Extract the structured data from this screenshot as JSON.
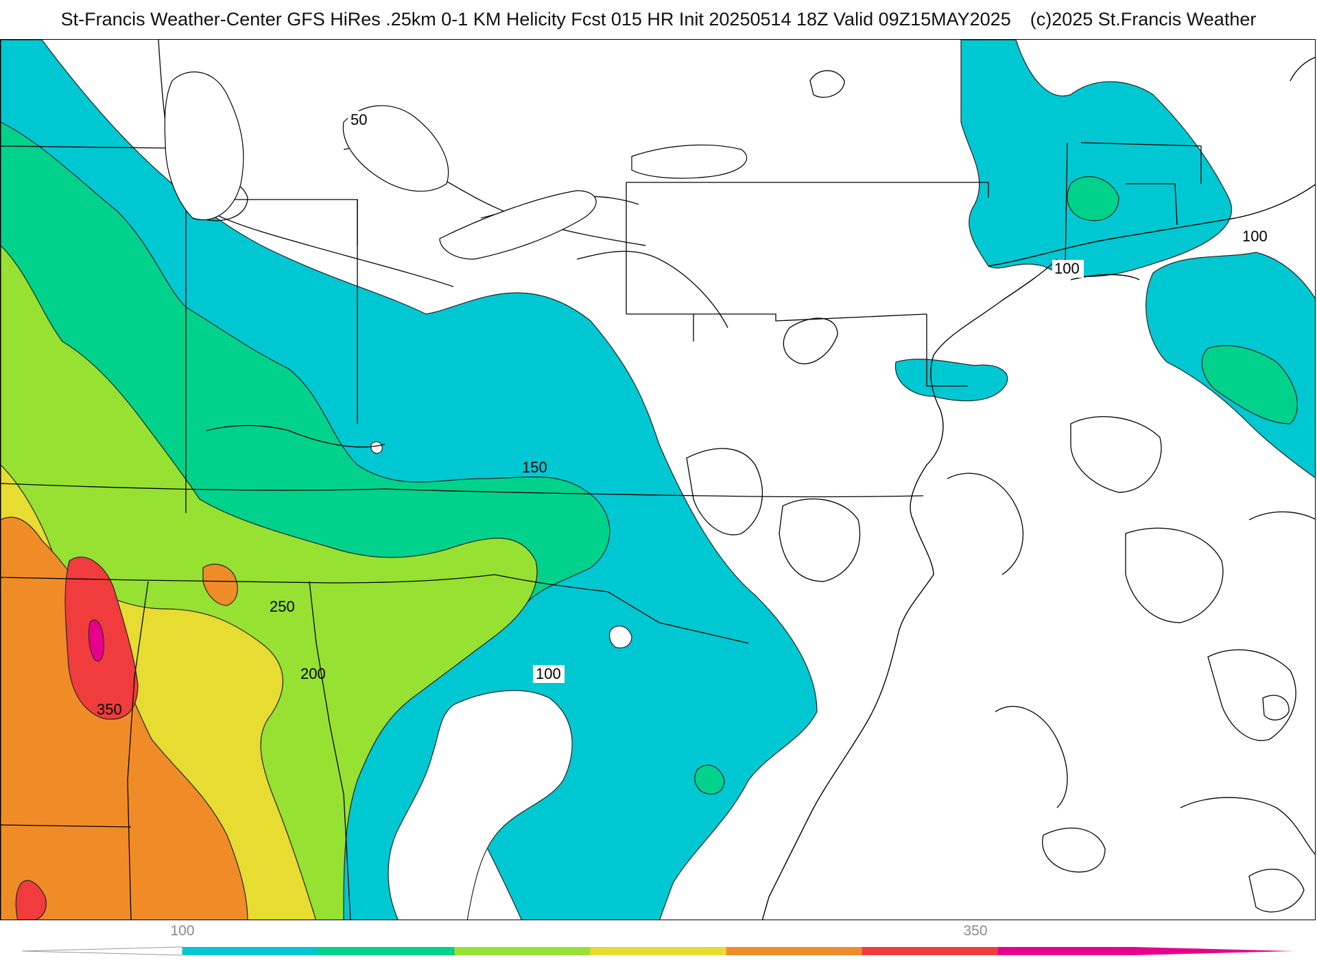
{
  "header": {
    "title": "St-Francis Weather-Center GFS HiRes .25km 0-1 KM Helicity Fcst 015 HR Init 20250514 18Z  Valid 09Z15MAY2025",
    "credit": "(c)2025 St.Francis Weather"
  },
  "map": {
    "contour_labels": [
      "50",
      "100",
      "100",
      "150",
      "250",
      "200",
      "350",
      "100"
    ]
  },
  "legend": {
    "tick_labels": [
      "100",
      "350"
    ],
    "colors": [
      "#00c8d2",
      "#00d28c",
      "#96e132",
      "#e6dc32",
      "#f08c28",
      "#f03c3c",
      "#e6008c"
    ]
  }
}
